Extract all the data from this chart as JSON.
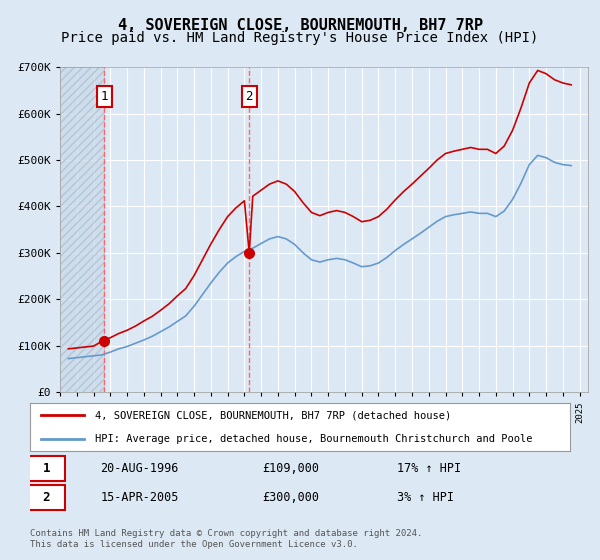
{
  "title": "4, SOVEREIGN CLOSE, BOURNEMOUTH, BH7 7RP",
  "subtitle": "Price paid vs. HM Land Registry's House Price Index (HPI)",
  "title_fontsize": 11,
  "subtitle_fontsize": 10,
  "background_color": "#dce9f5",
  "plot_bg_color": "#dce9f5",
  "grid_color": "#ffffff",
  "ylim": [
    0,
    700000
  ],
  "yticks": [
    0,
    100000,
    200000,
    300000,
    400000,
    500000,
    600000,
    700000
  ],
  "ytick_labels": [
    "£0",
    "£100K",
    "£200K",
    "£300K",
    "£400K",
    "£500K",
    "£600K",
    "£700K"
  ],
  "xlim_start": 1994.0,
  "xlim_end": 2025.5,
  "sale1_x": 1996.64,
  "sale1_y": 109000,
  "sale1_label": "1",
  "sale1_date": "20-AUG-1996",
  "sale1_price": "£109,000",
  "sale1_hpi": "17% ↑ HPI",
  "sale2_x": 2005.29,
  "sale2_y": 300000,
  "sale2_label": "2",
  "sale2_date": "15-APR-2005",
  "sale2_price": "£300,000",
  "sale2_hpi": "3% ↑ HPI",
  "red_line_color": "#cc0000",
  "blue_line_color": "#6699cc",
  "marker_color": "#cc0000",
  "dashed_line_color": "#ff6666",
  "legend_label1": "4, SOVEREIGN CLOSE, BOURNEMOUTH, BH7 7RP (detached house)",
  "legend_label2": "HPI: Average price, detached house, Bournemouth Christchurch and Poole",
  "footer": "Contains HM Land Registry data © Crown copyright and database right 2024.\nThis data is licensed under the Open Government Licence v3.0.",
  "hpi_years": [
    1994.5,
    1995.0,
    1995.5,
    1996.0,
    1996.5,
    1997.0,
    1997.5,
    1998.0,
    1998.5,
    1999.0,
    1999.5,
    2000.0,
    2000.5,
    2001.0,
    2001.5,
    2002.0,
    2002.5,
    2003.0,
    2003.5,
    2004.0,
    2004.5,
    2005.0,
    2005.5,
    2006.0,
    2006.5,
    2007.0,
    2007.5,
    2008.0,
    2008.5,
    2009.0,
    2009.5,
    2010.0,
    2010.5,
    2011.0,
    2011.5,
    2012.0,
    2012.5,
    2013.0,
    2013.5,
    2014.0,
    2014.5,
    2015.0,
    2015.5,
    2016.0,
    2016.5,
    2017.0,
    2017.5,
    2018.0,
    2018.5,
    2019.0,
    2019.5,
    2020.0,
    2020.5,
    2021.0,
    2021.5,
    2022.0,
    2022.5,
    2023.0,
    2023.5,
    2024.0,
    2024.5
  ],
  "hpi_values": [
    72000,
    74000,
    76000,
    78000,
    80000,
    86000,
    93000,
    98000,
    105000,
    112000,
    120000,
    130000,
    140000,
    152000,
    164000,
    185000,
    210000,
    235000,
    258000,
    278000,
    292000,
    303000,
    310000,
    320000,
    330000,
    335000,
    330000,
    318000,
    300000,
    285000,
    280000,
    285000,
    288000,
    285000,
    278000,
    270000,
    272000,
    278000,
    290000,
    305000,
    318000,
    330000,
    342000,
    355000,
    368000,
    378000,
    382000,
    385000,
    388000,
    385000,
    385000,
    378000,
    390000,
    415000,
    450000,
    490000,
    510000,
    505000,
    495000,
    490000,
    488000
  ],
  "red_years": [
    1994.5,
    1995.0,
    1995.5,
    1996.0,
    1996.5,
    1997.0,
    1997.5,
    1998.0,
    1998.5,
    1999.0,
    1999.5,
    2000.0,
    2000.5,
    2001.0,
    2001.5,
    2002.0,
    2002.5,
    2003.0,
    2003.5,
    2004.0,
    2004.5,
    2005.0,
    2005.29,
    2005.5,
    2006.0,
    2006.5,
    2007.0,
    2007.5,
    2008.0,
    2008.5,
    2009.0,
    2009.5,
    2010.0,
    2010.5,
    2011.0,
    2011.5,
    2012.0,
    2012.5,
    2013.0,
    2013.5,
    2014.0,
    2014.5,
    2015.0,
    2015.5,
    2016.0,
    2016.5,
    2017.0,
    2017.5,
    2018.0,
    2018.5,
    2019.0,
    2019.5,
    2020.0,
    2020.5,
    2021.0,
    2021.5,
    2022.0,
    2022.5,
    2023.0,
    2023.5,
    2024.0,
    2024.5
  ],
  "red_values": [
    93000,
    95000,
    97000,
    99000,
    109000,
    117000,
    126000,
    133000,
    142000,
    153000,
    163000,
    176000,
    190000,
    207000,
    223000,
    251000,
    285000,
    319000,
    350000,
    378000,
    397000,
    412000,
    300000,
    422000,
    435000,
    448000,
    455000,
    448000,
    432000,
    408000,
    387000,
    380000,
    387000,
    391000,
    387000,
    378000,
    367000,
    370000,
    378000,
    394000,
    414000,
    432000,
    448000,
    465000,
    482000,
    500000,
    514000,
    519000,
    523000,
    527000,
    523000,
    523000,
    514000,
    530000,
    564000,
    612000,
    666000,
    693000,
    686000,
    673000,
    666000,
    662000
  ]
}
